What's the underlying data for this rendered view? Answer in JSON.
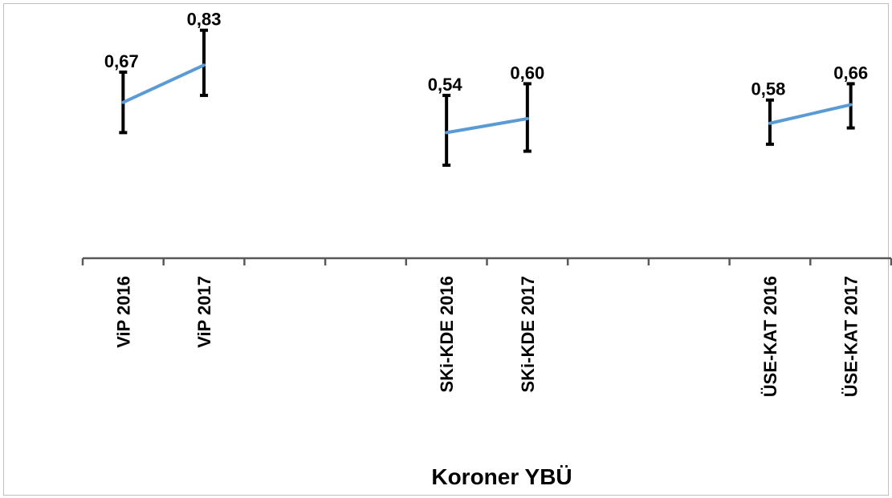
{
  "chart_data": {
    "type": "line",
    "title": "",
    "xlabel": "Koroner YBÜ",
    "ylabel": "",
    "categories": [
      "ViP 2016",
      "ViP 2017",
      "",
      "",
      "SKi-KDE 2016",
      "SKi-KDE 2017",
      "",
      "",
      "ÜSE-KAT 2016",
      "ÜSE-KAT 2017"
    ],
    "segments": [
      {
        "x": [
          "ViP 2016",
          "ViP 2017"
        ],
        "values": [
          0.67,
          0.83
        ],
        "labels": [
          "0,67",
          "0,83"
        ],
        "err_low": [
          0.54,
          0.7
        ],
        "err_high": [
          0.8,
          0.98
        ]
      },
      {
        "x": [
          "SKi-KDE 2016",
          "SKi-KDE 2017"
        ],
        "values": [
          0.54,
          0.6
        ],
        "labels": [
          "0,54",
          "0,60"
        ],
        "err_low": [
          0.4,
          0.46
        ],
        "err_high": [
          0.7,
          0.75
        ]
      },
      {
        "x": [
          "ÜSE-KAT 2016",
          "ÜSE-KAT 2017"
        ],
        "values": [
          0.58,
          0.66
        ],
        "labels": [
          "0,58",
          "0,66"
        ],
        "err_low": [
          0.49,
          0.56
        ],
        "err_high": [
          0.68,
          0.75
        ]
      }
    ],
    "ylim": [
      0,
      1.11
    ],
    "grid": false,
    "legend": "none",
    "line_color": "#5b9bd5",
    "error_bar_color": "#000000"
  }
}
